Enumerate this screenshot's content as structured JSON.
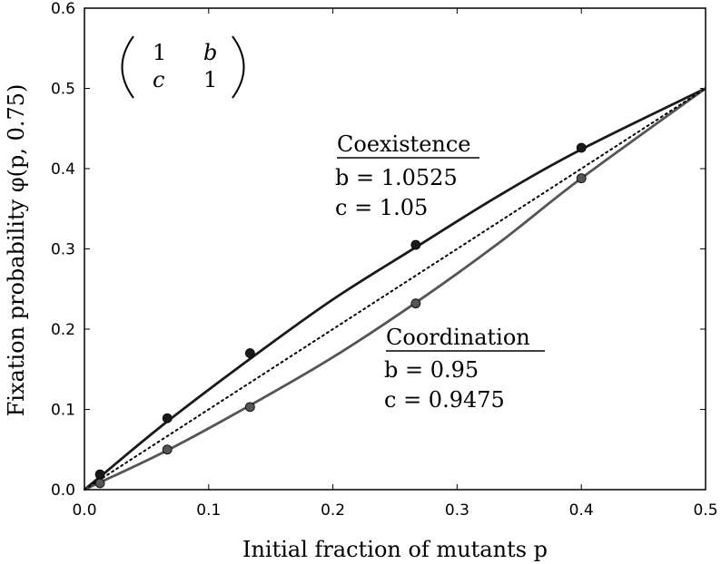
{
  "chart_data": {
    "type": "line",
    "xlabel": "Initial fraction of mutants p",
    "ylabel": "Fixation probability φ(p, 0.75)",
    "xlim": [
      0.0,
      0.5
    ],
    "ylim": [
      0.0,
      0.6
    ],
    "xticks": [
      "0.0",
      "0.1",
      "0.2",
      "0.3",
      "0.4",
      "0.5"
    ],
    "yticks": [
      "0.0",
      "0.1",
      "0.2",
      "0.3",
      "0.4",
      "0.5",
      "0.6"
    ],
    "grid": false,
    "matrix": [
      [
        "1",
        "b"
      ],
      [
        "c",
        "1"
      ]
    ],
    "series": [
      {
        "name": "Coexistence",
        "color": "#1a1a1a",
        "curve": {
          "x": [
            0.0,
            0.0125,
            0.0667,
            0.1333,
            0.2,
            0.2667,
            0.3333,
            0.4,
            0.5
          ],
          "y": [
            0.0,
            0.016,
            0.085,
            0.163,
            0.237,
            0.302,
            0.366,
            0.424,
            0.5
          ]
        },
        "points": {
          "x": [
            0.0125,
            0.0667,
            0.1333,
            0.2667,
            0.4
          ],
          "y": [
            0.019,
            0.089,
            0.17,
            0.305,
            0.426
          ]
        }
      },
      {
        "name": "Coordination",
        "color": "#555555",
        "curve": {
          "x": [
            0.0,
            0.0125,
            0.0667,
            0.1333,
            0.2,
            0.2667,
            0.3333,
            0.4,
            0.5
          ],
          "y": [
            0.0,
            0.009,
            0.049,
            0.105,
            0.165,
            0.233,
            0.307,
            0.388,
            0.5
          ]
        },
        "points": {
          "x": [
            0.0125,
            0.0667,
            0.1333,
            0.2667,
            0.4
          ],
          "y": [
            0.008,
            0.05,
            0.103,
            0.232,
            0.388
          ]
        }
      },
      {
        "name": "",
        "style": "dotted",
        "color": "#000000",
        "curve": {
          "x": [
            0.0,
            0.5
          ],
          "y": [
            0.0,
            0.5
          ]
        }
      }
    ],
    "annotations": {
      "coexistence": {
        "heading": "Coexistence",
        "b": "b = 1.0525",
        "c": "c = 1.05"
      },
      "coordination": {
        "heading": "Coordination",
        "b": "b = 0.95",
        "c": "c = 0.9475"
      }
    }
  }
}
